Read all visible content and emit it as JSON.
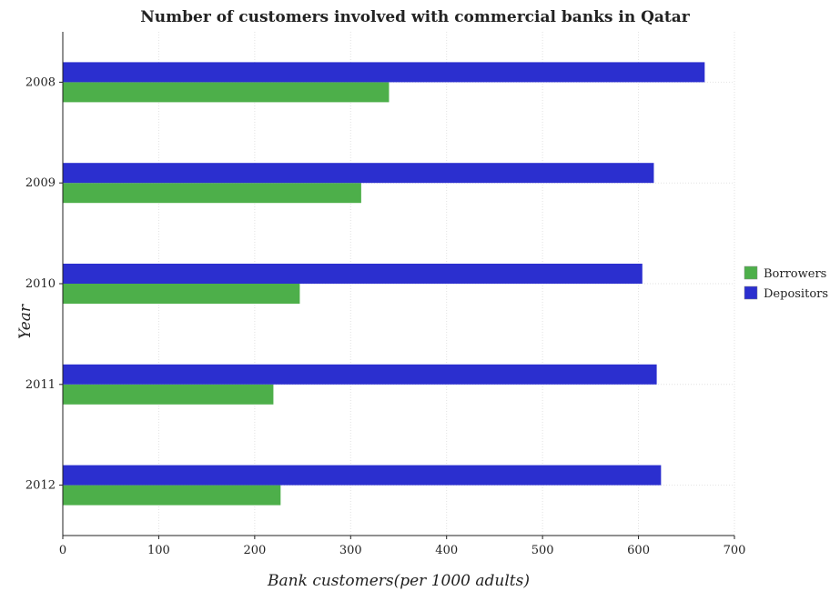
{
  "chart_data": {
    "type": "bar",
    "orientation": "horizontal",
    "title": "Number of customers involved with commercial banks in Qatar",
    "xlabel": "Bank customers(per 1000 adults)",
    "ylabel": "Year",
    "xlim": [
      0,
      700
    ],
    "xticks": [
      0,
      100,
      200,
      300,
      400,
      500,
      600,
      700
    ],
    "categories": [
      "2008",
      "2009",
      "2010",
      "2011",
      "2012"
    ],
    "series": [
      {
        "name": "Borrowers",
        "color": "#4daf4a",
        "values": [
          340,
          311,
          247,
          219.5,
          227
        ]
      },
      {
        "name": "Depositors",
        "color": "#2b2fcf",
        "values": [
          669,
          616,
          604,
          619,
          623.5
        ]
      }
    ],
    "grid": true,
    "legend_position": "right"
  }
}
